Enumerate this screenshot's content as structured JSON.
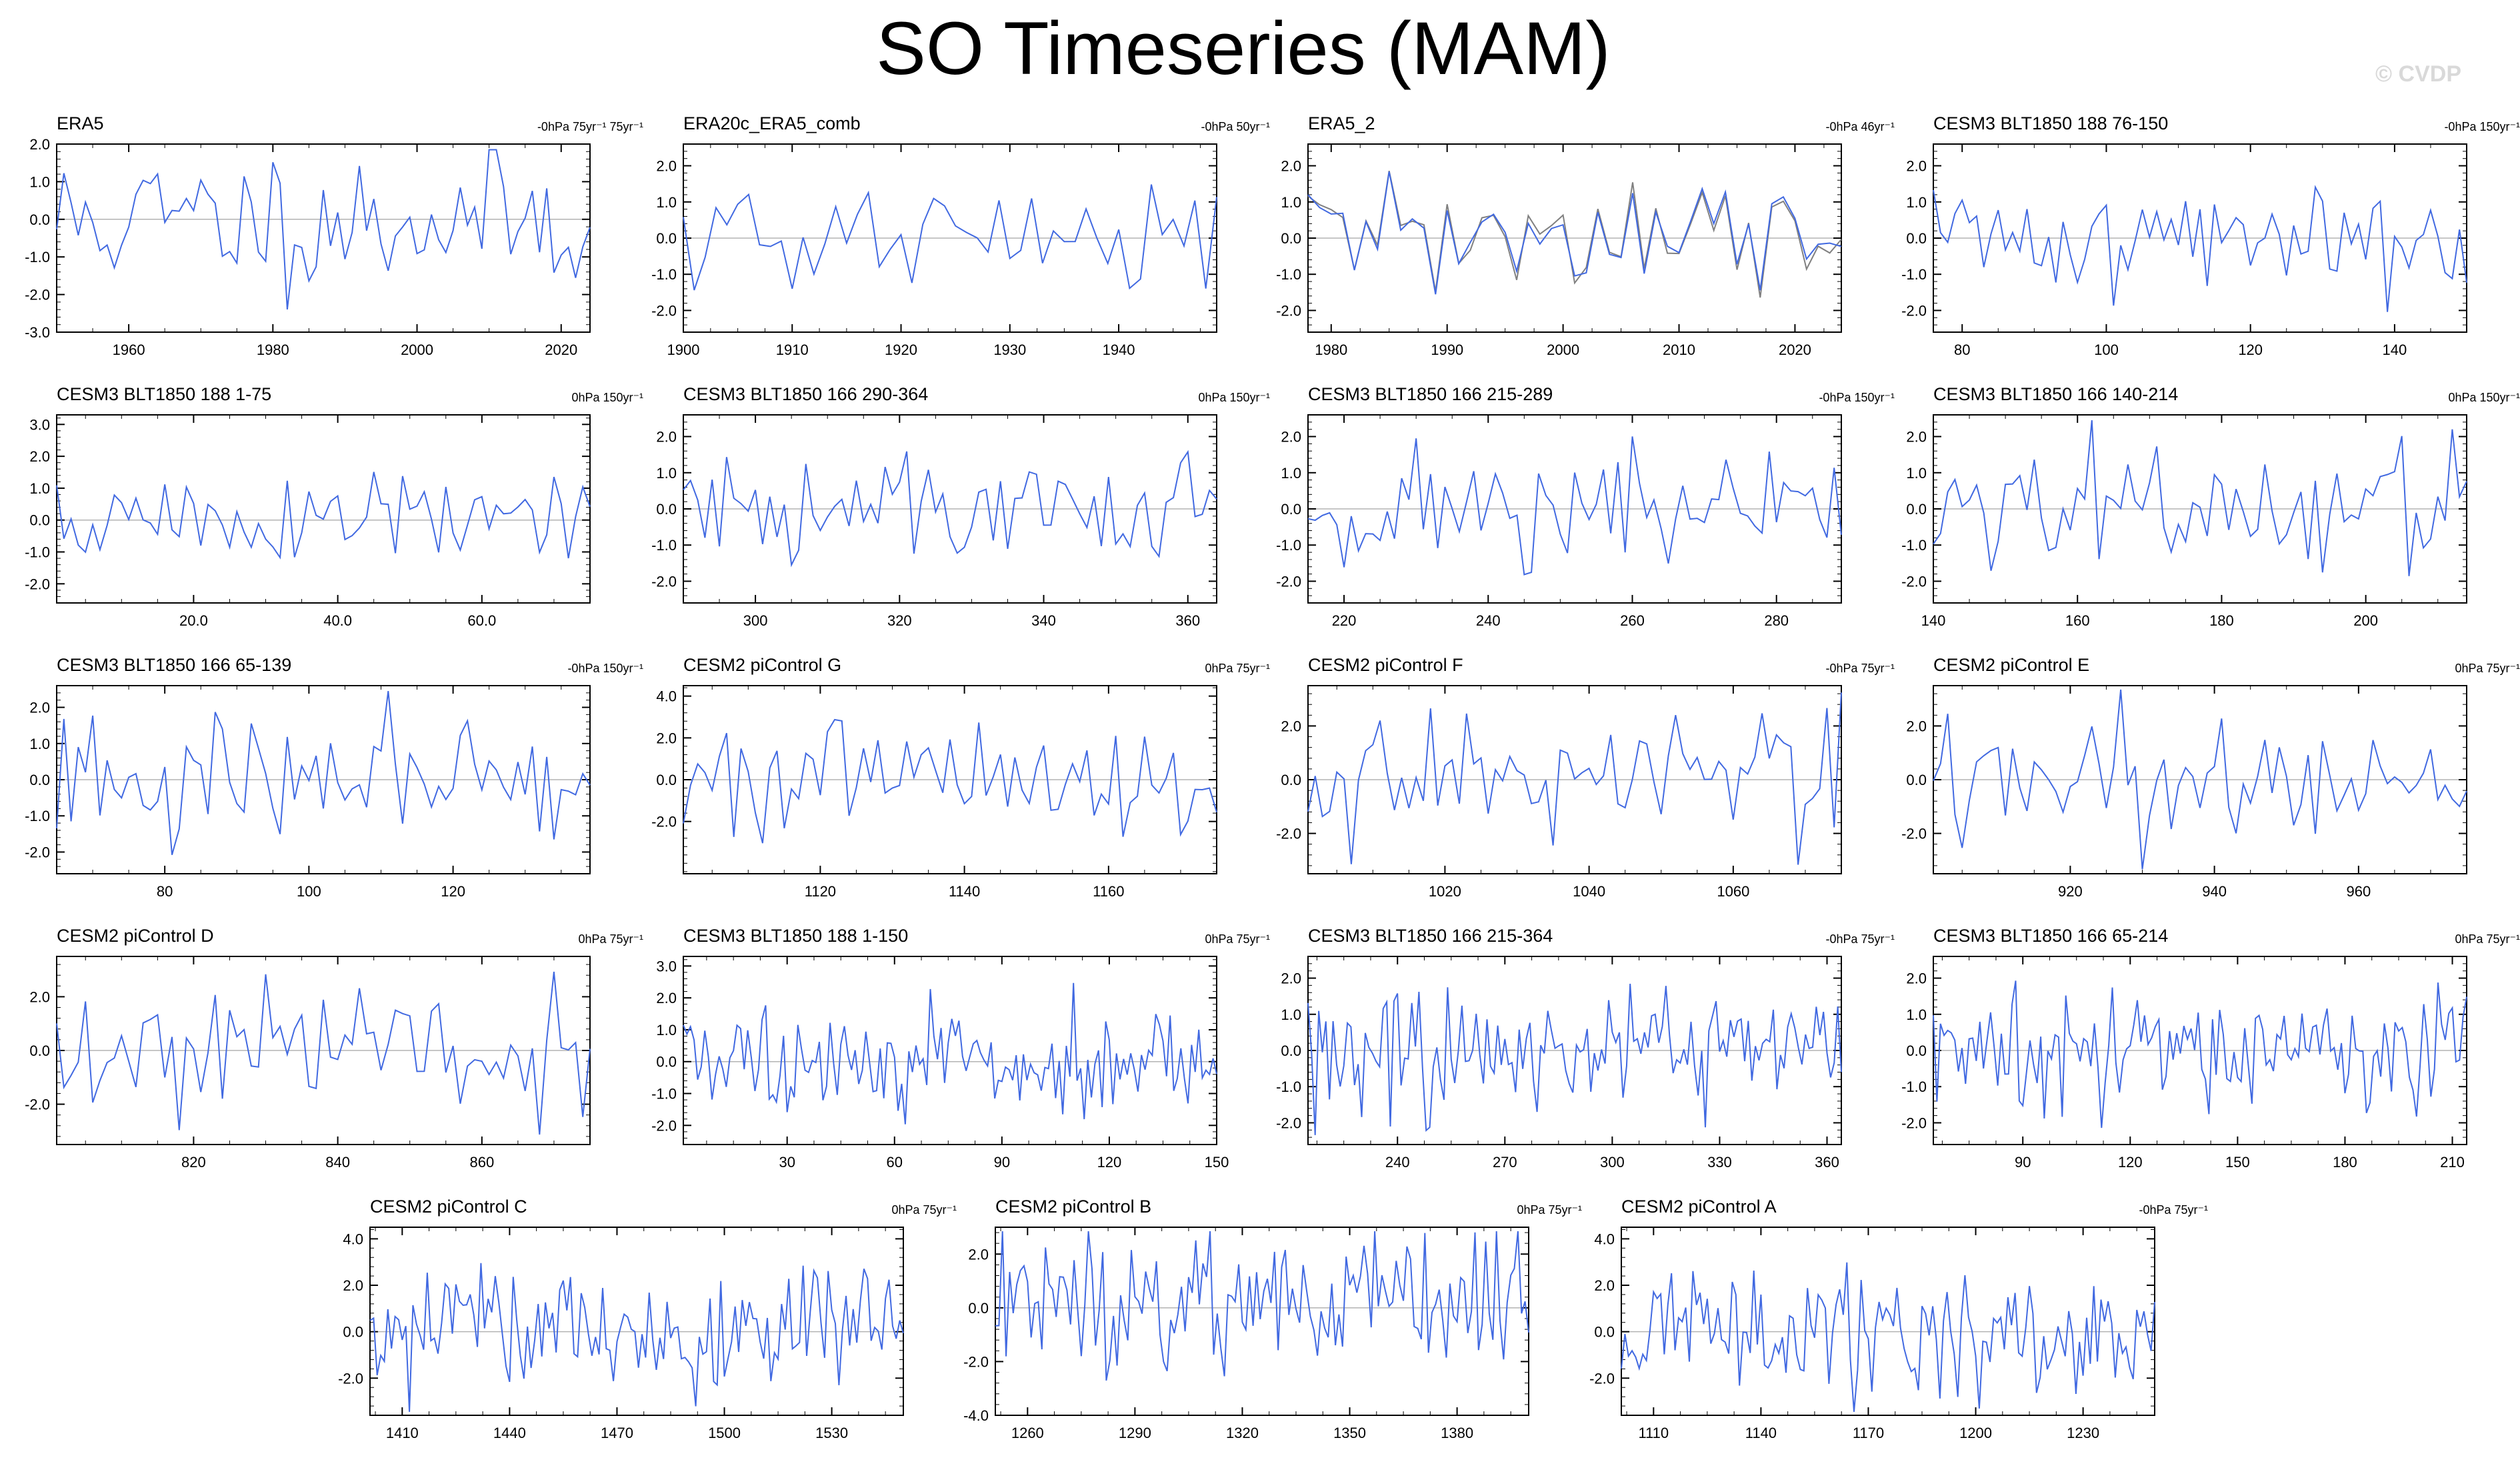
{
  "title": "SO Timeseries (MAM)",
  "watermark": "© CVDP",
  "colors": {
    "series": "#4169e1",
    "second": "#808080",
    "zero": "#b3b3b3",
    "axis": "#000000"
  },
  "chart_data": [
    {
      "type": "line",
      "title": "ERA5",
      "annotation": "-0hPa 75yr⁻¹ 75yr⁻¹",
      "xlim": [
        1950,
        2024
      ],
      "ylim": [
        -3,
        2
      ],
      "xticks": [
        1960,
        1980,
        2000,
        2020
      ],
      "yticks": [
        -3,
        -2,
        -1,
        0,
        1,
        2
      ],
      "ytick_format": 1,
      "xtick_format": 0,
      "seed": 11,
      "amp": 0.95,
      "n": 75
    },
    {
      "type": "line",
      "title": "ERA20c_ERA5_comb",
      "annotation": "-0hPa 50yr⁻¹",
      "xlim": [
        1900,
        1949
      ],
      "ylim": [
        -2.6,
        2.6
      ],
      "xticks": [
        1900,
        1910,
        1920,
        1930,
        1940
      ],
      "yticks": [
        -2,
        -1,
        0,
        1,
        2
      ],
      "ytick_format": 1,
      "xtick_format": 0,
      "seed": 21,
      "amp": 0.85,
      "n": 50
    },
    {
      "type": "line",
      "title": "ERA5_2",
      "annotation": "-0hPa 46yr⁻¹",
      "xlim": [
        1978,
        2024
      ],
      "ylim": [
        -2.6,
        2.6
      ],
      "xticks": [
        1980,
        1990,
        2000,
        2010,
        2020
      ],
      "yticks": [
        -2,
        -1,
        0,
        1,
        2
      ],
      "ytick_format": 1,
      "xtick_format": 0,
      "seed": 31,
      "amp": 0.85,
      "n": 47,
      "second_series": true
    },
    {
      "type": "line",
      "title": "CESM3 BLT1850 188 76-150",
      "annotation": "-0hPa 150yr⁻¹",
      "xlim": [
        76,
        150
      ],
      "ylim": [
        -2.6,
        2.6
      ],
      "xticks": [
        80,
        100,
        120,
        140
      ],
      "yticks": [
        -2,
        -1,
        0,
        1,
        2
      ],
      "ytick_format": 1,
      "xtick_format": 0,
      "seed": 41,
      "amp": 0.8,
      "n": 75
    },
    {
      "type": "line",
      "title": "CESM3 BLT1850 188 1-75",
      "annotation": "0hPa 150yr⁻¹",
      "xlim": [
        1,
        75
      ],
      "ylim": [
        -2.6,
        3.3
      ],
      "xticks": [
        20,
        40,
        60
      ],
      "yticks": [
        -2,
        -1,
        0,
        1,
        2,
        3
      ],
      "ytick_format": 1,
      "xtick_format": 1,
      "seed": 51,
      "amp": 0.8,
      "n": 75
    },
    {
      "type": "line",
      "title": "CESM3 BLT1850 166 290-364",
      "annotation": "0hPa 150yr⁻¹",
      "xlim": [
        290,
        364
      ],
      "ylim": [
        -2.6,
        2.6
      ],
      "xticks": [
        300,
        320,
        340,
        360
      ],
      "yticks": [
        -2,
        -1,
        0,
        1,
        2
      ],
      "ytick_format": 1,
      "xtick_format": 0,
      "seed": 61,
      "amp": 0.85,
      "n": 75
    },
    {
      "type": "line",
      "title": "CESM3 BLT1850 166 215-289",
      "annotation": "-0hPa 150yr⁻¹",
      "xlim": [
        215,
        289
      ],
      "ylim": [
        -2.6,
        2.6
      ],
      "xticks": [
        220,
        240,
        260,
        280
      ],
      "yticks": [
        -2,
        -1,
        0,
        1,
        2
      ],
      "ytick_format": 1,
      "xtick_format": 0,
      "seed": 71,
      "amp": 0.85,
      "n": 75
    },
    {
      "type": "line",
      "title": "CESM3 BLT1850 166 140-214",
      "annotation": "0hPa 150yr⁻¹",
      "xlim": [
        140,
        214
      ],
      "ylim": [
        -2.6,
        2.6
      ],
      "xticks": [
        140,
        160,
        180,
        200
      ],
      "yticks": [
        -2,
        -1,
        0,
        1,
        2
      ],
      "ytick_format": 1,
      "xtick_format": 0,
      "seed": 81,
      "amp": 0.85,
      "n": 75
    },
    {
      "type": "line",
      "title": "CESM3 BLT1850 166 65-139",
      "annotation": "-0hPa 150yr⁻¹",
      "xlim": [
        65,
        139
      ],
      "ylim": [
        -2.6,
        2.6
      ],
      "xticks": [
        80,
        100,
        120
      ],
      "yticks": [
        -2,
        -1,
        0,
        1,
        2
      ],
      "ytick_format": 1,
      "xtick_format": 0,
      "seed": 91,
      "amp": 0.85,
      "n": 75
    },
    {
      "type": "line",
      "title": "CESM2 piControl G",
      "annotation": "0hPa 75yr⁻¹",
      "xlim": [
        1101,
        1175
      ],
      "ylim": [
        -4.5,
        4.5
      ],
      "xticks": [
        1120,
        1140,
        1160
      ],
      "yticks": [
        -2,
        0,
        2,
        4
      ],
      "ytick_format": 1,
      "xtick_format": 0,
      "seed": 101,
      "amp": 1.4,
      "n": 75
    },
    {
      "type": "line",
      "title": "CESM2 piControl F",
      "annotation": "-0hPa 75yr⁻¹",
      "xlim": [
        1001,
        1075
      ],
      "ylim": [
        -3.5,
        3.5
      ],
      "xticks": [
        1020,
        1040,
        1060
      ],
      "yticks": [
        -2,
        0,
        2
      ],
      "ytick_format": 1,
      "xtick_format": 0,
      "seed": 111,
      "amp": 1.3,
      "n": 75
    },
    {
      "type": "line",
      "title": "CESM2 piControl E",
      "annotation": "0hPa 75yr⁻¹",
      "xlim": [
        901,
        975
      ],
      "ylim": [
        -3.5,
        3.5
      ],
      "xticks": [
        920,
        940,
        960
      ],
      "yticks": [
        -2,
        0,
        2
      ],
      "ytick_format": 1,
      "xtick_format": 0,
      "seed": 121,
      "amp": 1.1,
      "n": 75
    },
    {
      "type": "line",
      "title": "CESM2 piControl D",
      "annotation": "0hPa 75yr⁻¹",
      "xlim": [
        801,
        875
      ],
      "ylim": [
        -3.5,
        3.5
      ],
      "xticks": [
        820,
        840,
        860
      ],
      "yticks": [
        -2,
        0,
        2
      ],
      "ytick_format": 1,
      "xtick_format": 0,
      "seed": 131,
      "amp": 1.2,
      "n": 75
    },
    {
      "type": "line",
      "title": "CESM3 BLT1850 188 1-150",
      "annotation": "0hPa 75yr⁻¹",
      "xlim": [
        1,
        150
      ],
      "ylim": [
        -2.6,
        3.3
      ],
      "xticks": [
        30,
        60,
        90,
        120,
        150
      ],
      "yticks": [
        -2,
        -1,
        0,
        1,
        2,
        3
      ],
      "ytick_format": 1,
      "xtick_format": 0,
      "seed": 141,
      "amp": 0.8,
      "n": 150
    },
    {
      "type": "line",
      "title": "CESM3 BLT1850 166 215-364",
      "annotation": "-0hPa 75yr⁻¹",
      "xlim": [
        215,
        364
      ],
      "ylim": [
        -2.6,
        2.6
      ],
      "xticks": [
        240,
        270,
        300,
        330,
        360
      ],
      "yticks": [
        -2,
        -1,
        0,
        1,
        2
      ],
      "ytick_format": 1,
      "xtick_format": 0,
      "seed": 151,
      "amp": 0.85,
      "n": 150
    },
    {
      "type": "line",
      "title": "CESM3 BLT1850 166 65-214",
      "annotation": "0hPa 75yr⁻¹",
      "xlim": [
        65,
        214
      ],
      "ylim": [
        -2.6,
        2.6
      ],
      "xticks": [
        90,
        120,
        150,
        180,
        210
      ],
      "yticks": [
        -2,
        -1,
        0,
        1,
        2
      ],
      "ytick_format": 1,
      "xtick_format": 0,
      "seed": 161,
      "amp": 0.85,
      "n": 150
    },
    {
      "type": "line",
      "title": "CESM2 piControl C",
      "annotation": "0hPa 75yr⁻¹",
      "xlim": [
        1401,
        1550
      ],
      "ylim": [
        -3.6,
        4.5
      ],
      "xticks": [
        1410,
        1440,
        1470,
        1500,
        1530
      ],
      "yticks": [
        -2,
        0,
        2,
        4
      ],
      "ytick_format": 1,
      "xtick_format": 0,
      "seed": 171,
      "amp": 1.3,
      "n": 150
    },
    {
      "type": "line",
      "title": "CESM2 piControl B",
      "annotation": "0hPa 75yr⁻¹",
      "xlim": [
        1251,
        1400
      ],
      "ylim": [
        -4.0,
        3.0
      ],
      "xticks": [
        1260,
        1290,
        1320,
        1350,
        1380
      ],
      "yticks": [
        -4,
        -2,
        0,
        2
      ],
      "ytick_format": 1,
      "xtick_format": 0,
      "seed": 181,
      "amp": 1.3,
      "n": 150
    },
    {
      "type": "line",
      "title": "CESM2 piControl A",
      "annotation": "-0hPa 75yr⁻¹",
      "xlim": [
        1101,
        1250
      ],
      "ylim": [
        -3.6,
        4.5
      ],
      "xticks": [
        1110,
        1140,
        1170,
        1200,
        1230
      ],
      "yticks": [
        -2,
        0,
        2,
        4
      ],
      "ytick_format": 1,
      "xtick_format": 0,
      "seed": 191,
      "amp": 1.3,
      "n": 150
    }
  ]
}
